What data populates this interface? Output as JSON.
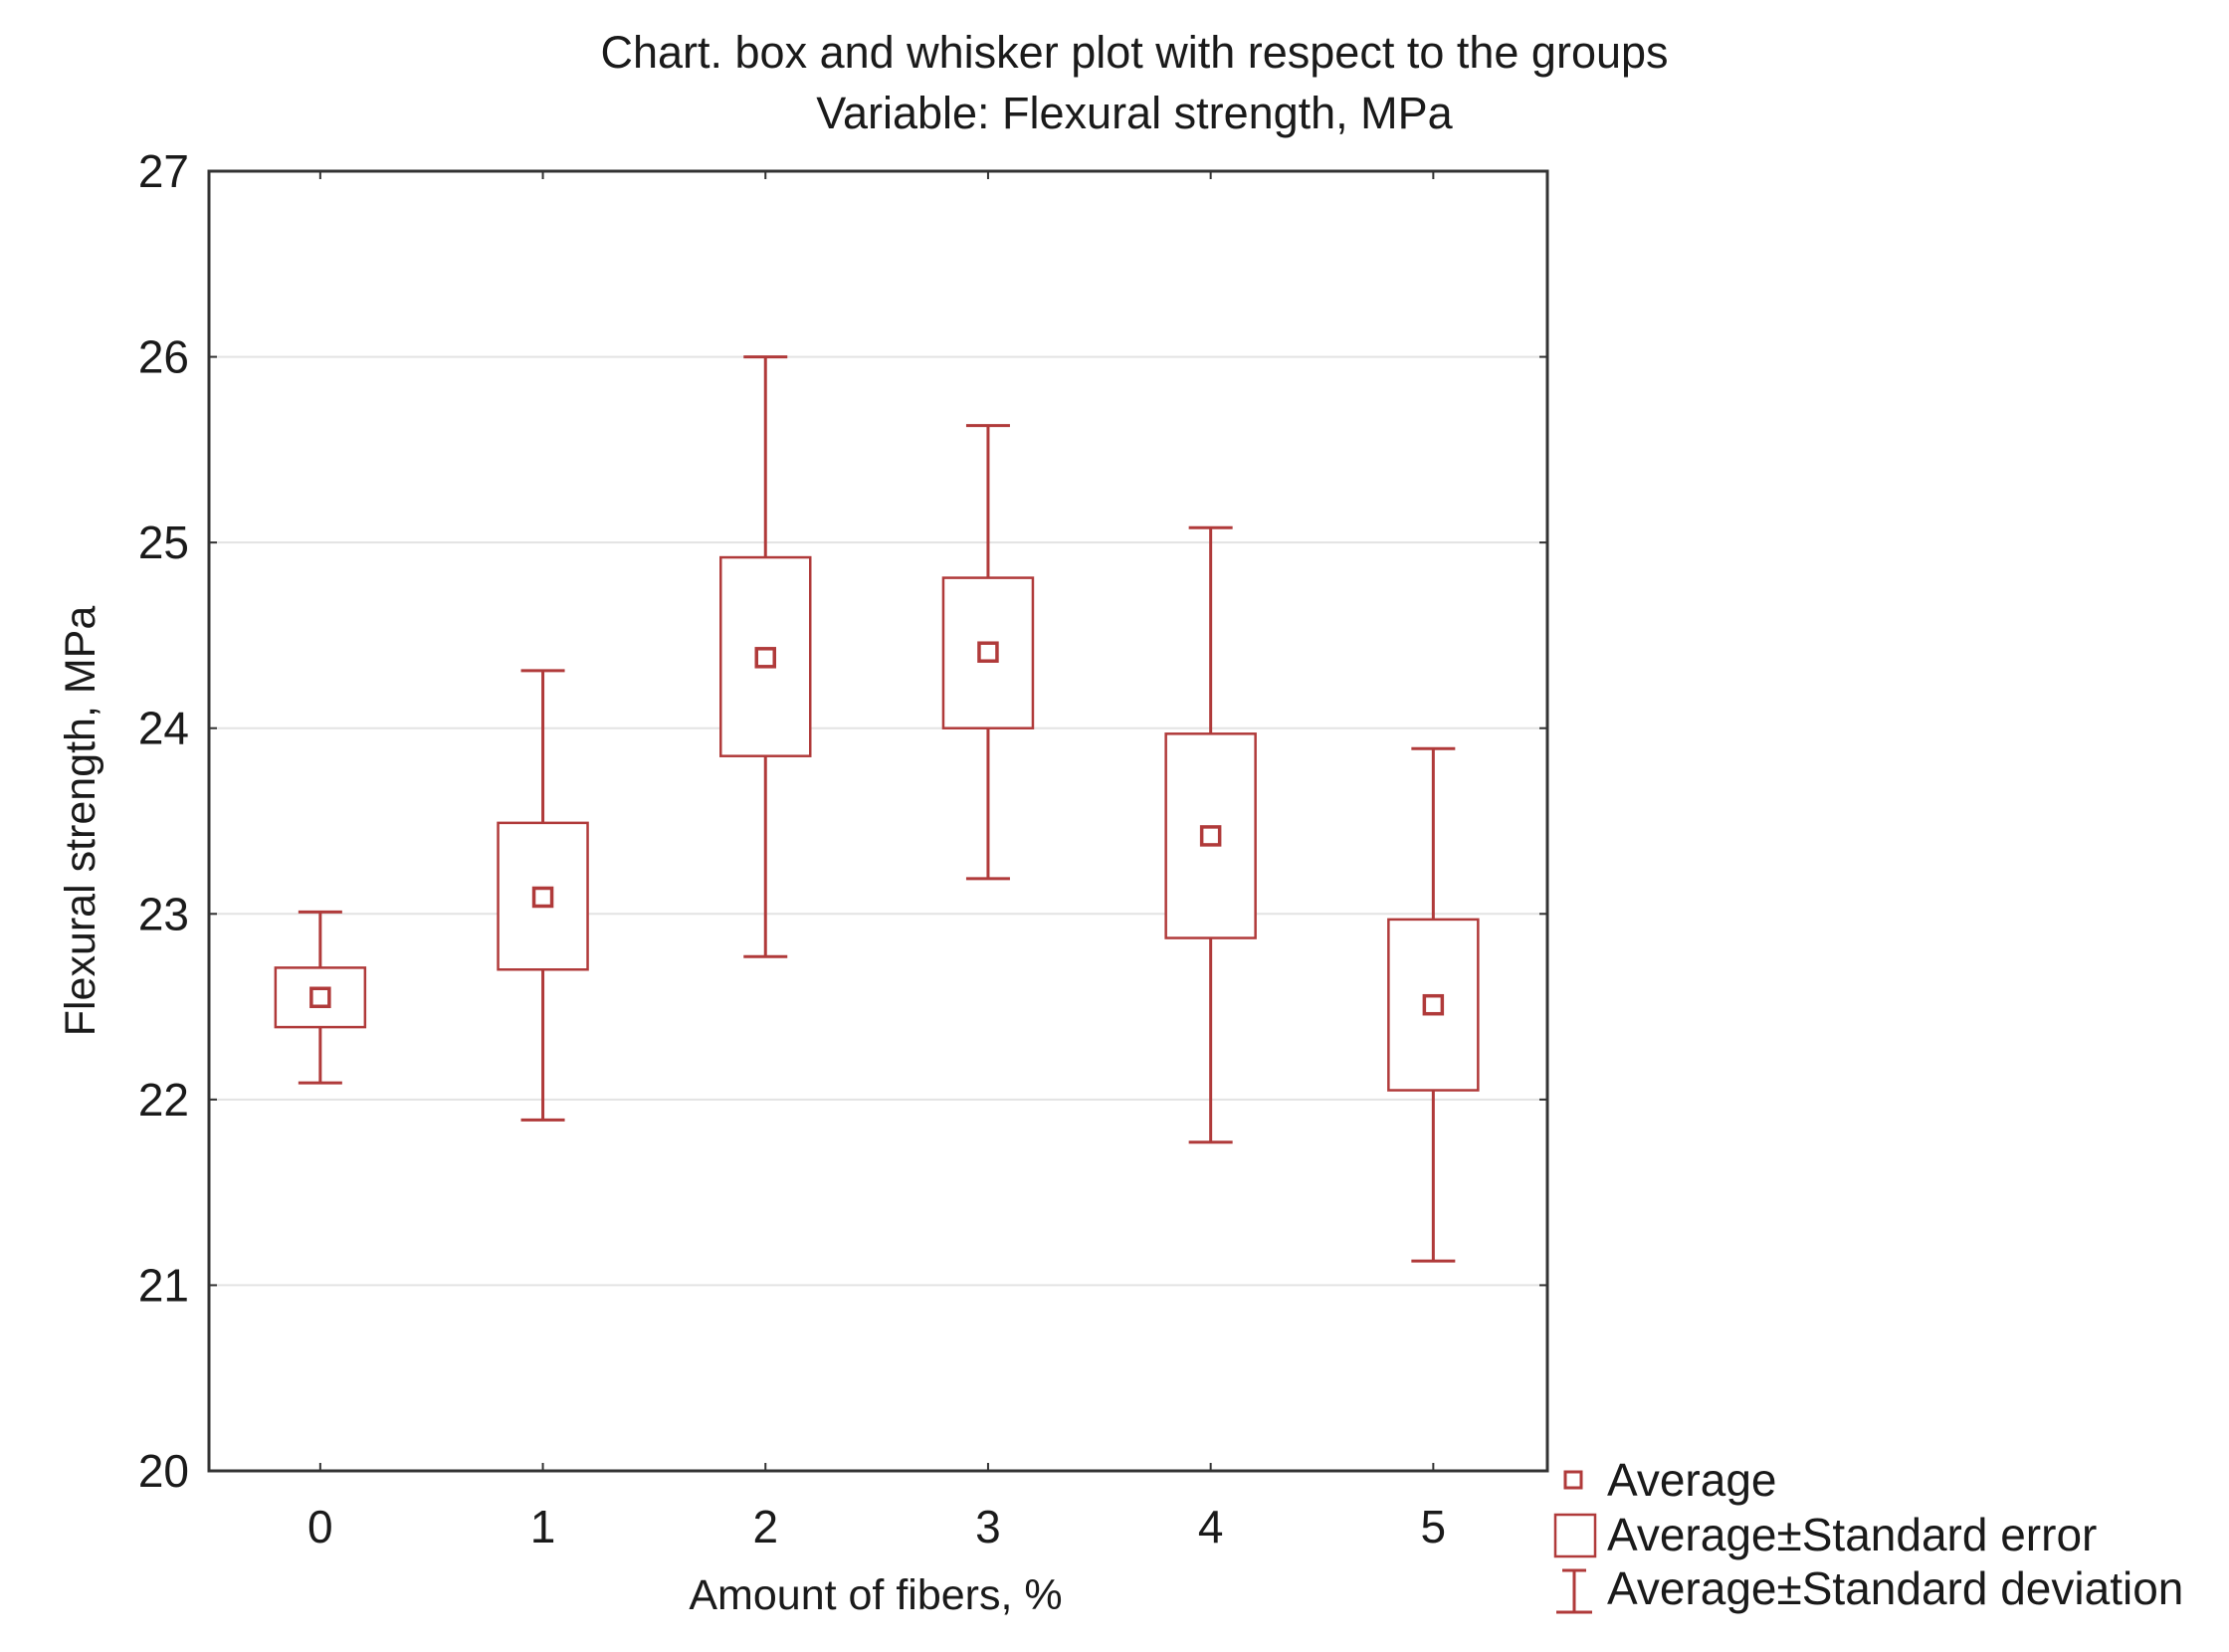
{
  "colors": {
    "series": "#b03a3a",
    "axis": "#333333",
    "grid": "#e3e3e3",
    "text": "#1a1a1a"
  },
  "chart_data": {
    "type": "box",
    "title": "Chart. box and whisker plot with respect to the groups",
    "subtitle": "Variable: Flexural strength, MPa",
    "xlabel": "Amount of fibers, %",
    "ylabel": "Flexural strength, MPa",
    "categories": [
      "0",
      "1",
      "2",
      "3",
      "4",
      "5"
    ],
    "ylim": [
      20,
      27
    ],
    "yticks": [
      20,
      21,
      22,
      23,
      24,
      25,
      26,
      27
    ],
    "grid": true,
    "series": [
      {
        "category": "0",
        "mean": 22.55,
        "se_low": 22.39,
        "se_high": 22.71,
        "sd_low": 22.09,
        "sd_high": 23.01
      },
      {
        "category": "1",
        "mean": 23.09,
        "se_low": 22.7,
        "se_high": 23.49,
        "sd_low": 21.89,
        "sd_high": 24.31
      },
      {
        "category": "2",
        "mean": 24.38,
        "se_low": 23.85,
        "se_high": 24.92,
        "sd_low": 22.77,
        "sd_high": 26.0
      },
      {
        "category": "3",
        "mean": 24.41,
        "se_low": 24.0,
        "se_high": 24.81,
        "sd_low": 23.19,
        "sd_high": 25.63
      },
      {
        "category": "4",
        "mean": 23.42,
        "se_low": 22.87,
        "se_high": 23.97,
        "sd_low": 21.77,
        "sd_high": 25.08
      },
      {
        "category": "5",
        "mean": 22.51,
        "se_low": 22.05,
        "se_high": 22.97,
        "sd_low": 21.13,
        "sd_high": 23.89
      }
    ],
    "legend": {
      "position": "bottom-right",
      "items": [
        {
          "marker": "mean-square",
          "label": "Average"
        },
        {
          "marker": "box",
          "label": "Average±Standard error"
        },
        {
          "marker": "whisker",
          "label": "Average±Standard deviation"
        }
      ]
    }
  }
}
